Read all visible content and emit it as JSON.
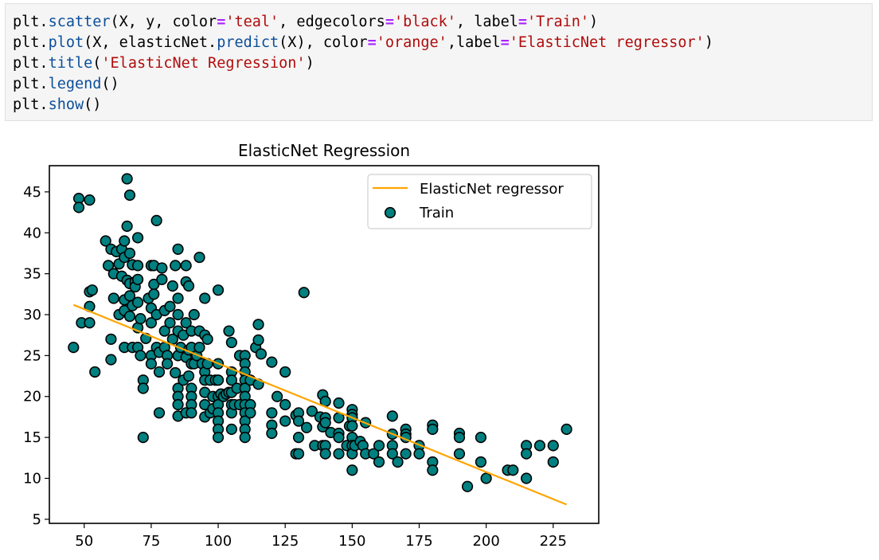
{
  "code_cell": {
    "lines": [
      [
        {
          "t": "plt.",
          "c": ""
        },
        {
          "t": "scatter",
          "c": "fn"
        },
        {
          "t": "(X, y, color",
          "c": ""
        },
        {
          "t": "=",
          "c": "op"
        },
        {
          "t": "'teal'",
          "c": "str"
        },
        {
          "t": ", edgecolors",
          "c": ""
        },
        {
          "t": "=",
          "c": "op"
        },
        {
          "t": "'black'",
          "c": "str"
        },
        {
          "t": ", label",
          "c": ""
        },
        {
          "t": "=",
          "c": "op"
        },
        {
          "t": "'Train'",
          "c": "str"
        },
        {
          "t": ")",
          "c": ""
        }
      ],
      [
        {
          "t": "plt.",
          "c": ""
        },
        {
          "t": "plot",
          "c": "fn"
        },
        {
          "t": "(X, elasticNet.",
          "c": ""
        },
        {
          "t": "predict",
          "c": "fn"
        },
        {
          "t": "(X), color",
          "c": ""
        },
        {
          "t": "=",
          "c": "op"
        },
        {
          "t": "'orange'",
          "c": "str"
        },
        {
          "t": ",label",
          "c": ""
        },
        {
          "t": "=",
          "c": "op"
        },
        {
          "t": "'ElasticNet regressor'",
          "c": "str"
        },
        {
          "t": ")",
          "c": ""
        }
      ],
      [
        {
          "t": "plt.",
          "c": ""
        },
        {
          "t": "title",
          "c": "fn"
        },
        {
          "t": "(",
          "c": ""
        },
        {
          "t": "'ElasticNet Regression'",
          "c": "str"
        },
        {
          "t": ")",
          "c": ""
        }
      ],
      [
        {
          "t": "plt.",
          "c": ""
        },
        {
          "t": "legend",
          "c": "fn"
        },
        {
          "t": "()",
          "c": ""
        }
      ],
      [
        {
          "t": "plt.",
          "c": ""
        },
        {
          "t": "show",
          "c": "fn"
        },
        {
          "t": "()",
          "c": ""
        }
      ]
    ]
  },
  "chart_data": {
    "type": "scatter",
    "title": "ElasticNet Regression",
    "xlabel": "",
    "ylabel": "",
    "xlim": [
      37,
      242
    ],
    "ylim": [
      4.5,
      48.2
    ],
    "xticks": [
      50,
      75,
      100,
      125,
      150,
      175,
      200,
      225
    ],
    "yticks": [
      5,
      10,
      15,
      20,
      25,
      30,
      35,
      40,
      45
    ],
    "grid": false,
    "legend": {
      "position": "upper right",
      "entries": [
        "ElasticNet regressor",
        "Train"
      ]
    },
    "colors": {
      "scatter_fill": "#008080",
      "scatter_edge": "#000000",
      "line": "#ffa500"
    },
    "series": [
      {
        "name": "ElasticNet regressor",
        "type": "line",
        "x": [
          46,
          230
        ],
        "y": [
          31.2,
          6.8
        ]
      },
      {
        "name": "Train",
        "type": "scatter",
        "points": [
          [
            46,
            26
          ],
          [
            48,
            44.2
          ],
          [
            48,
            43.1
          ],
          [
            49,
            29
          ],
          [
            52,
            44
          ],
          [
            52,
            31
          ],
          [
            52,
            29
          ],
          [
            52,
            32.8
          ],
          [
            53,
            33
          ],
          [
            54,
            23
          ],
          [
            58,
            39
          ],
          [
            59,
            36
          ],
          [
            60,
            38
          ],
          [
            60,
            27
          ],
          [
            60,
            24.5
          ],
          [
            61,
            35
          ],
          [
            61,
            32
          ],
          [
            62,
            37.7
          ],
          [
            63,
            36.2
          ],
          [
            63,
            30
          ],
          [
            64,
            38
          ],
          [
            64,
            34.7
          ],
          [
            65,
            39
          ],
          [
            65,
            37
          ],
          [
            65,
            31.8
          ],
          [
            65,
            30.5
          ],
          [
            65,
            26
          ],
          [
            66,
            46.6
          ],
          [
            66,
            40.8
          ],
          [
            66,
            34.2
          ],
          [
            67,
            44.6
          ],
          [
            67,
            37.5
          ],
          [
            67,
            33.8
          ],
          [
            67,
            32.3
          ],
          [
            67,
            29.8
          ],
          [
            68,
            36.1
          ],
          [
            68,
            31.1
          ],
          [
            68,
            26
          ],
          [
            69,
            34
          ],
          [
            69,
            33.4
          ],
          [
            70,
            39.4
          ],
          [
            70,
            36
          ],
          [
            70,
            34.3
          ],
          [
            70,
            31.5
          ],
          [
            70,
            28.4
          ],
          [
            70,
            26
          ],
          [
            71,
            29.5
          ],
          [
            71,
            25
          ],
          [
            72,
            22
          ],
          [
            72,
            21
          ],
          [
            72,
            15
          ],
          [
            73,
            27.1
          ],
          [
            74,
            32
          ],
          [
            75,
            36
          ],
          [
            75,
            30.8
          ],
          [
            75,
            29
          ],
          [
            75,
            25
          ],
          [
            75,
            24
          ],
          [
            76,
            36
          ],
          [
            76,
            33.7
          ],
          [
            76,
            32.5
          ],
          [
            77,
            41.5
          ],
          [
            77,
            30
          ],
          [
            77,
            26
          ],
          [
            78,
            25.4
          ],
          [
            78,
            23
          ],
          [
            78,
            18
          ],
          [
            79,
            35.7
          ],
          [
            79,
            34.3
          ],
          [
            80,
            30.5
          ],
          [
            80,
            28
          ],
          [
            80,
            26
          ],
          [
            81,
            25
          ],
          [
            81,
            24
          ],
          [
            82,
            31
          ],
          [
            82,
            29
          ],
          [
            83,
            33.5
          ],
          [
            83,
            27
          ],
          [
            84,
            36
          ],
          [
            84,
            22.9
          ],
          [
            85,
            38
          ],
          [
            85,
            32
          ],
          [
            85,
            30
          ],
          [
            85,
            28
          ],
          [
            85,
            25
          ],
          [
            85,
            21
          ],
          [
            85,
            20
          ],
          [
            85,
            19
          ],
          [
            85,
            17.6
          ],
          [
            86,
            26
          ],
          [
            87,
            22
          ],
          [
            87,
            27.5
          ],
          [
            88,
            36
          ],
          [
            88,
            34
          ],
          [
            88,
            29
          ],
          [
            88,
            24.8
          ],
          [
            88,
            18
          ],
          [
            89,
            33.5
          ],
          [
            89,
            25.7
          ],
          [
            89,
            22.5
          ],
          [
            90,
            28
          ],
          [
            90,
            26
          ],
          [
            90,
            24
          ],
          [
            90,
            21
          ],
          [
            90,
            20
          ],
          [
            90,
            19
          ],
          [
            90,
            18
          ],
          [
            91,
            30
          ],
          [
            91,
            24
          ],
          [
            92,
            25
          ],
          [
            93,
            37
          ],
          [
            93,
            28
          ],
          [
            93,
            26
          ],
          [
            94,
            24
          ],
          [
            95,
            32
          ],
          [
            95,
            27.5
          ],
          [
            95,
            23
          ],
          [
            95,
            22
          ],
          [
            95,
            20.5
          ],
          [
            95,
            19
          ],
          [
            95,
            17.5
          ],
          [
            96,
            27
          ],
          [
            96,
            24
          ],
          [
            97,
            22
          ],
          [
            97,
            18
          ],
          [
            98,
            20
          ],
          [
            98,
            18.5
          ],
          [
            99,
            22
          ],
          [
            100,
            33
          ],
          [
            100,
            24
          ],
          [
            100,
            22
          ],
          [
            100,
            20
          ],
          [
            100,
            19
          ],
          [
            100,
            18
          ],
          [
            100,
            17
          ],
          [
            100,
            16
          ],
          [
            100,
            15
          ],
          [
            101,
            20.3
          ],
          [
            102,
            20
          ],
          [
            103,
            20.3
          ],
          [
            104,
            28
          ],
          [
            104,
            20.5
          ],
          [
            105,
            26.6
          ],
          [
            105,
            23
          ],
          [
            105,
            22
          ],
          [
            105,
            20.5
          ],
          [
            105,
            19
          ],
          [
            105,
            18
          ],
          [
            105,
            16
          ],
          [
            106,
            19
          ],
          [
            107,
            21
          ],
          [
            108,
            25
          ],
          [
            108,
            19
          ],
          [
            110,
            25
          ],
          [
            110,
            24
          ],
          [
            110,
            23
          ],
          [
            110,
            22
          ],
          [
            110,
            21
          ],
          [
            110,
            20
          ],
          [
            110,
            19
          ],
          [
            110,
            18
          ],
          [
            110,
            17
          ],
          [
            110,
            16
          ],
          [
            110,
            15
          ],
          [
            112,
            22
          ],
          [
            112,
            19
          ],
          [
            112,
            18
          ],
          [
            114,
            26
          ],
          [
            115,
            28.8
          ],
          [
            115,
            26.9
          ],
          [
            115,
            21.5
          ],
          [
            116,
            25.2
          ],
          [
            120,
            24.2
          ],
          [
            120,
            18
          ],
          [
            120,
            16.5
          ],
          [
            120,
            15.5
          ],
          [
            122,
            20
          ],
          [
            125,
            23
          ],
          [
            125,
            19
          ],
          [
            125,
            17
          ],
          [
            129,
            17.7
          ],
          [
            129,
            13
          ],
          [
            130,
            18
          ],
          [
            130,
            17
          ],
          [
            130,
            15
          ],
          [
            130,
            13
          ],
          [
            132,
            32.7
          ],
          [
            133,
            16.2
          ],
          [
            135,
            18.2
          ],
          [
            136,
            14
          ],
          [
            138,
            17.5
          ],
          [
            139,
            16.3
          ],
          [
            139,
            14
          ],
          [
            139,
            20.2
          ],
          [
            140,
            19.4
          ],
          [
            140,
            17.4
          ],
          [
            140,
            16.8
          ],
          [
            140,
            14
          ],
          [
            140,
            13
          ],
          [
            142,
            15.6
          ],
          [
            145,
            19.2
          ],
          [
            145,
            17.4
          ],
          [
            145,
            15.5
          ],
          [
            145,
            15
          ],
          [
            145,
            13
          ],
          [
            148,
            14
          ],
          [
            149,
            16.4
          ],
          [
            150,
            18.4
          ],
          [
            150,
            17.8
          ],
          [
            150,
            17.4
          ],
          [
            150,
            16.4
          ],
          [
            150,
            15
          ],
          [
            150,
            14
          ],
          [
            150,
            13
          ],
          [
            150,
            11
          ],
          [
            151,
            14
          ],
          [
            153,
            14.5
          ],
          [
            154,
            14
          ],
          [
            155,
            16.8
          ],
          [
            155,
            13
          ],
          [
            158,
            13
          ],
          [
            160,
            14
          ],
          [
            160,
            12
          ],
          [
            165,
            17.6
          ],
          [
            165,
            15.4
          ],
          [
            165,
            14
          ],
          [
            165,
            13
          ],
          [
            167,
            12
          ],
          [
            170,
            16
          ],
          [
            170,
            15.4
          ],
          [
            170,
            13
          ],
          [
            170,
            15
          ],
          [
            175,
            14
          ],
          [
            175,
            13
          ],
          [
            180,
            16.5
          ],
          [
            180,
            16
          ],
          [
            180,
            12
          ],
          [
            180,
            11
          ],
          [
            190,
            15.5
          ],
          [
            190,
            15
          ],
          [
            190,
            13
          ],
          [
            193,
            9
          ],
          [
            198,
            15
          ],
          [
            198,
            12
          ],
          [
            200,
            10
          ],
          [
            208,
            11
          ],
          [
            210,
            11
          ],
          [
            215,
            14
          ],
          [
            215,
            13
          ],
          [
            215,
            10
          ],
          [
            220,
            14
          ],
          [
            225,
            14
          ],
          [
            225,
            12
          ],
          [
            230,
            16
          ]
        ]
      }
    ]
  }
}
